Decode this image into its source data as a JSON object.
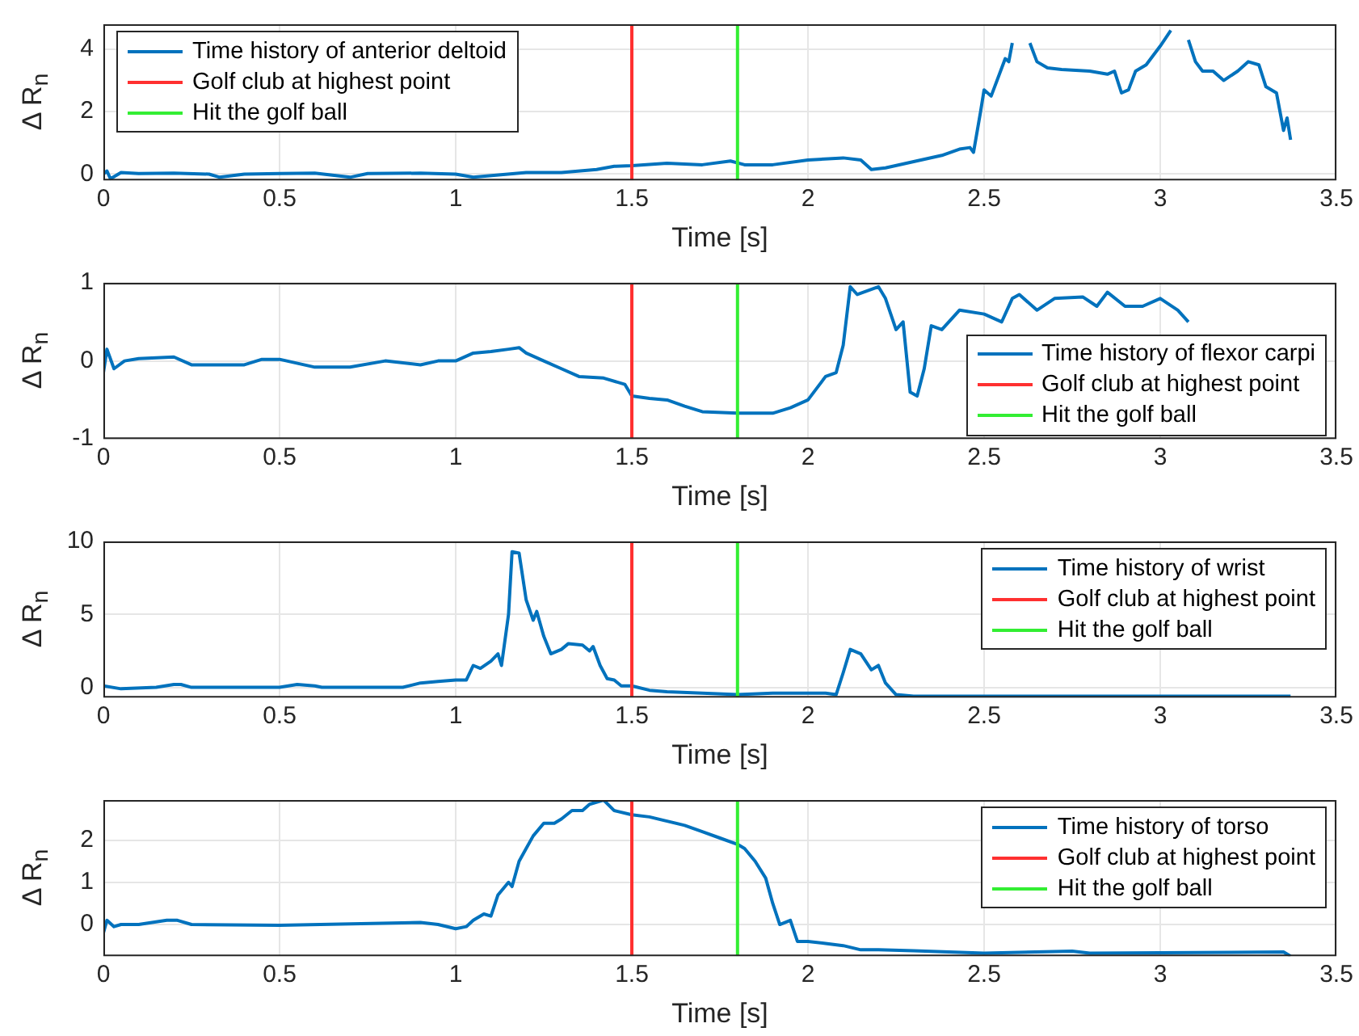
{
  "chart_data": [
    {
      "type": "line",
      "xlabel": "Time [s]",
      "ylabel": "Δ R$_{n}$",
      "xlim": [
        0,
        3.5
      ],
      "xticks": [
        0,
        0.5,
        1,
        1.5,
        2,
        2.5,
        3,
        3.5
      ],
      "ylim": [
        -0.2,
        4.8
      ],
      "yticks": [
        0,
        2,
        4
      ],
      "grid": true,
      "legend": "top left",
      "series": [
        {
          "name": "Time history of anterior deltoid",
          "color": "#0072bd",
          "x": [
            0,
            0.01,
            0.02,
            0.05,
            0.1,
            0.2,
            0.3,
            0.33,
            0.4,
            0.5,
            0.6,
            0.7,
            0.75,
            0.9,
            1.0,
            1.05,
            1.2,
            1.3,
            1.4,
            1.45,
            1.5,
            1.6,
            1.7,
            1.78,
            1.82,
            1.9,
            2.0,
            2.1,
            2.15,
            2.18,
            2.22,
            2.3,
            2.38,
            2.43,
            2.46,
            2.47,
            2.49,
            2.5,
            2.52,
            2.54,
            2.56,
            2.57,
            2.58,
            2.59,
            2.61,
            2.63,
            2.65,
            2.68,
            2.72,
            2.8,
            2.85,
            2.87,
            2.89,
            2.91,
            2.93,
            2.96,
            3.0,
            3.03,
            3.06,
            3.08,
            3.1,
            3.12,
            3.15,
            3.18,
            3.22,
            3.25,
            3.28,
            3.3,
            3.33,
            3.35,
            3.36,
            3.37
          ],
          "values": [
            0,
            0.1,
            -0.15,
            0.05,
            0.02,
            0.03,
            0,
            -0.1,
            0,
            0.02,
            0.03,
            -0.1,
            0.02,
            0.03,
            0,
            -0.1,
            0.05,
            0.05,
            0.15,
            0.25,
            0.27,
            0.35,
            0.3,
            0.42,
            0.3,
            0.3,
            0.45,
            0.52,
            0.45,
            0.15,
            0.2,
            0.4,
            0.6,
            0.8,
            0.85,
            0.7,
            2.0,
            2.7,
            2.5,
            3.1,
            3.7,
            3.6,
            4.2,
            null,
            null,
            4.2,
            3.6,
            3.4,
            3.35,
            3.3,
            3.2,
            3.3,
            2.6,
            2.7,
            3.3,
            3.5,
            4.1,
            4.6,
            null,
            4.3,
            3.6,
            3.3,
            3.3,
            3.0,
            3.3,
            3.6,
            3.5,
            2.8,
            2.6,
            1.4,
            1.8,
            1.1
          ]
        },
        {
          "name": "Golf club at highest point",
          "color": "#ff3030",
          "x": [
            1.5,
            1.5
          ],
          "values": [
            -0.2,
            4.8
          ]
        },
        {
          "name": "Hit the golf ball",
          "color": "#33ee33",
          "x": [
            1.8,
            1.8
          ],
          "values": [
            -0.2,
            4.8
          ]
        }
      ]
    },
    {
      "type": "line",
      "xlabel": "Time [s]",
      "ylabel": "Δ R$_{n}$",
      "xlim": [
        0,
        3.5
      ],
      "xticks": [
        0,
        0.5,
        1,
        1.5,
        2,
        2.5,
        3,
        3.5
      ],
      "ylim": [
        -1,
        1
      ],
      "yticks": [
        -1,
        0,
        1
      ],
      "grid": true,
      "legend": "bottom right",
      "series": [
        {
          "name": "Time history of flexor carpi",
          "color": "#0072bd",
          "x": [
            0,
            0.01,
            0.03,
            0.06,
            0.1,
            0.2,
            0.25,
            0.4,
            0.45,
            0.5,
            0.6,
            0.7,
            0.8,
            0.9,
            0.95,
            1.0,
            1.05,
            1.1,
            1.15,
            1.18,
            1.2,
            1.25,
            1.3,
            1.35,
            1.42,
            1.48,
            1.5,
            1.55,
            1.6,
            1.65,
            1.7,
            1.8,
            1.9,
            1.95,
            2.0,
            2.05,
            2.08,
            2.1,
            2.12,
            2.14,
            2.2,
            2.22,
            2.25,
            2.27,
            2.29,
            2.31,
            2.33,
            2.35,
            2.38,
            2.43,
            2.5,
            2.55,
            2.58,
            2.6,
            2.65,
            2.7,
            2.78,
            2.82,
            2.85,
            2.9,
            2.95,
            3.0,
            3.05,
            3.08
          ],
          "values": [
            -0.15,
            0.15,
            -0.1,
            0,
            0.03,
            0.05,
            -0.05,
            -0.05,
            0.02,
            0.02,
            -0.08,
            -0.08,
            0,
            -0.05,
            0,
            0,
            0.1,
            0.12,
            0.15,
            0.17,
            0.1,
            0,
            -0.1,
            -0.2,
            -0.22,
            -0.3,
            -0.45,
            -0.48,
            -0.5,
            -0.58,
            -0.65,
            -0.67,
            -0.67,
            -0.6,
            -0.5,
            -0.2,
            -0.15,
            0.2,
            0.95,
            0.85,
            0.95,
            0.8,
            0.4,
            0.5,
            -0.4,
            -0.45,
            -0.1,
            0.45,
            0.4,
            0.65,
            0.6,
            0.5,
            0.8,
            0.85,
            0.65,
            0.8,
            0.82,
            0.7,
            0.88,
            0.7,
            0.7,
            0.8,
            0.65,
            0.5
          ]
        },
        {
          "name": "Golf club at highest point",
          "color": "#ff3030",
          "x": [
            1.5,
            1.5
          ],
          "values": [
            -1,
            1
          ]
        },
        {
          "name": "Hit the golf ball",
          "color": "#33ee33",
          "x": [
            1.8,
            1.8
          ],
          "values": [
            -1,
            1
          ]
        }
      ]
    },
    {
      "type": "line",
      "xlabel": "Time [s]",
      "ylabel": "Δ R$_{n}$",
      "xlim": [
        0,
        3.5
      ],
      "xticks": [
        0,
        0.5,
        1,
        1.5,
        2,
        2.5,
        3,
        3.5
      ],
      "ylim": [
        -0.7,
        10
      ],
      "yticks": [
        0,
        5,
        10
      ],
      "grid": true,
      "legend": "top right",
      "series": [
        {
          "name": "Time history of wrist",
          "color": "#0072bd",
          "x": [
            0,
            0.05,
            0.15,
            0.2,
            0.22,
            0.25,
            0.5,
            0.55,
            0.6,
            0.62,
            0.85,
            0.9,
            0.95,
            1.0,
            1.03,
            1.05,
            1.07,
            1.1,
            1.12,
            1.13,
            1.15,
            1.16,
            1.18,
            1.2,
            1.22,
            1.23,
            1.25,
            1.27,
            1.3,
            1.32,
            1.36,
            1.38,
            1.39,
            1.41,
            1.43,
            1.45,
            1.47,
            1.5,
            1.55,
            1.6,
            1.7,
            1.8,
            1.9,
            2.0,
            2.05,
            2.08,
            2.1,
            2.12,
            2.15,
            2.18,
            2.2,
            2.22,
            2.25,
            2.3,
            2.5,
            3.0,
            3.37
          ],
          "values": [
            0.1,
            -0.1,
            0,
            0.2,
            0.2,
            0,
            0,
            0.2,
            0.1,
            0,
            0,
            0.3,
            0.4,
            0.5,
            0.5,
            1.5,
            1.3,
            1.8,
            2.3,
            1.5,
            5.0,
            9.3,
            9.2,
            6.0,
            4.6,
            5.2,
            3.5,
            2.3,
            2.6,
            3.0,
            2.9,
            2.5,
            2.8,
            1.5,
            0.6,
            0.5,
            0.1,
            0.1,
            -0.2,
            -0.3,
            -0.4,
            -0.5,
            -0.4,
            -0.4,
            -0.4,
            -0.5,
            1.0,
            2.6,
            2.3,
            1.2,
            1.5,
            0.3,
            -0.5,
            -0.6,
            -0.6,
            -0.6,
            -0.6
          ]
        },
        {
          "name": "Golf club at highest point",
          "color": "#ff3030",
          "x": [
            1.5,
            1.5
          ],
          "values": [
            -0.7,
            10
          ]
        },
        {
          "name": "Hit the golf ball",
          "color": "#33ee33",
          "x": [
            1.8,
            1.8
          ],
          "values": [
            -0.7,
            10
          ]
        }
      ]
    },
    {
      "type": "line",
      "xlabel": "Time [s]",
      "ylabel": "Δ R$_{n}$",
      "xlim": [
        0,
        3.5
      ],
      "xticks": [
        0,
        0.5,
        1,
        1.5,
        2,
        2.5,
        3,
        3.5
      ],
      "ylim": [
        -0.75,
        2.95
      ],
      "yticks": [
        0,
        1,
        2
      ],
      "grid": true,
      "legend": "top right",
      "series": [
        {
          "name": "Time history of torso",
          "color": "#0072bd",
          "x": [
            0,
            0.01,
            0.03,
            0.05,
            0.1,
            0.18,
            0.21,
            0.25,
            0.5,
            0.9,
            0.95,
            1.0,
            1.03,
            1.05,
            1.08,
            1.1,
            1.12,
            1.15,
            1.16,
            1.18,
            1.2,
            1.22,
            1.25,
            1.28,
            1.3,
            1.33,
            1.36,
            1.38,
            1.42,
            1.45,
            1.5,
            1.55,
            1.6,
            1.65,
            1.7,
            1.75,
            1.8,
            1.82,
            1.85,
            1.88,
            1.9,
            1.92,
            1.95,
            1.97,
            2.0,
            2.05,
            2.1,
            2.15,
            2.2,
            2.3,
            2.5,
            2.75,
            2.8,
            3.0,
            3.2,
            3.35,
            3.37
          ],
          "values": [
            -0.2,
            0.1,
            -0.05,
            0,
            0,
            0.1,
            0.1,
            0,
            -0.02,
            0.05,
            0,
            -0.1,
            -0.05,
            0.1,
            0.25,
            0.2,
            0.7,
            1.0,
            0.9,
            1.5,
            1.8,
            2.1,
            2.4,
            2.4,
            2.5,
            2.7,
            2.7,
            2.85,
            2.95,
            2.7,
            2.6,
            2.55,
            2.45,
            2.35,
            2.2,
            2.05,
            1.9,
            1.8,
            1.5,
            1.1,
            0.5,
            0,
            0.1,
            -0.4,
            -0.4,
            -0.45,
            -0.5,
            -0.6,
            -0.6,
            -0.62,
            -0.68,
            -0.63,
            -0.68,
            -0.67,
            -0.66,
            -0.65,
            -0.75
          ]
        },
        {
          "name": "Golf club at highest point",
          "color": "#ff3030",
          "x": [
            1.5,
            1.5
          ],
          "values": [
            -0.75,
            2.95
          ]
        },
        {
          "name": "Hit the golf ball",
          "color": "#33ee33",
          "x": [
            1.8,
            1.8
          ],
          "values": [
            -0.75,
            2.95
          ]
        }
      ]
    }
  ]
}
